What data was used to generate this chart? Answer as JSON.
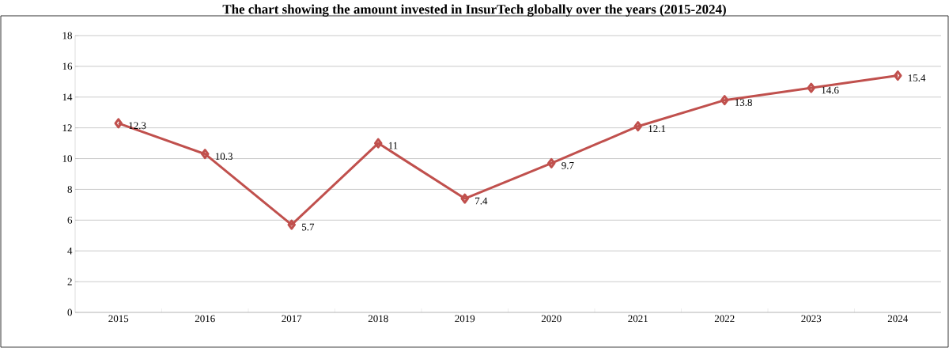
{
  "chart_data": {
    "type": "line",
    "title": "The chart showing the amount invested in InsurTech globally over the years (2015-2024)",
    "categories": [
      "2015",
      "2016",
      "2017",
      "2018",
      "2019",
      "2020",
      "2021",
      "2022",
      "2023",
      "2024"
    ],
    "values": [
      12.3,
      10.3,
      5.7,
      11,
      7.4,
      9.7,
      12.1,
      13.8,
      14.6,
      15.4
    ],
    "color": "#c0504d",
    "marker": "diamond",
    "line_style": "solid",
    "data_labels": true,
    "grid": "y",
    "ylim": [
      0,
      18
    ],
    "yticks": [
      0,
      2,
      4,
      6,
      8,
      10,
      12,
      14,
      16,
      18
    ]
  }
}
